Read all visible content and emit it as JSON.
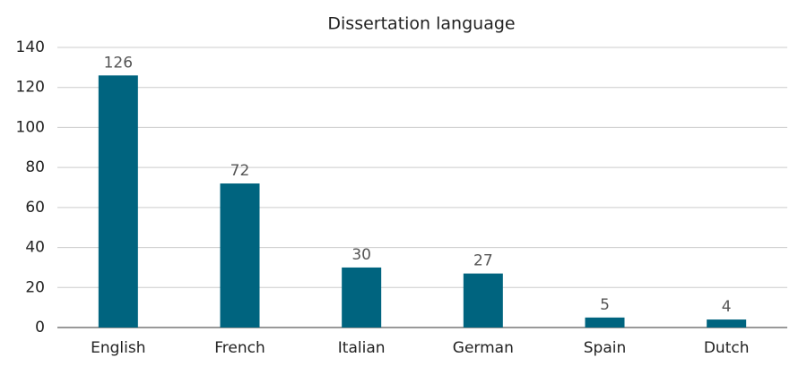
{
  "chart_data": {
    "type": "bar",
    "title": "Dissertation language",
    "categories": [
      "English",
      "French",
      "Italian",
      "German",
      "Spain",
      "Dutch"
    ],
    "values": [
      126,
      72,
      30,
      27,
      5,
      4
    ],
    "color": "#00647f",
    "ylim": [
      0,
      140
    ],
    "yticks": [
      0,
      20,
      40,
      60,
      80,
      100,
      120,
      140
    ],
    "grid": true
  }
}
